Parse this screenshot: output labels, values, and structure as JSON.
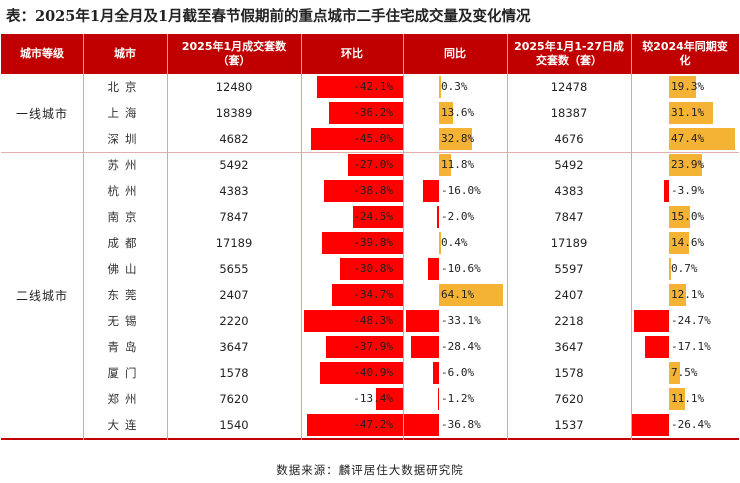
{
  "title": "表：2025年1月全月及1月截至春节假期前的重点城市二手住宅成交量及变化情况",
  "headers": {
    "tier": "城市等级",
    "city": "城市",
    "jan_volume": "2025年1月成交套数（套）",
    "mom": "环比",
    "yoy": "同比",
    "pre_volume": "2025年1月1-27日成交套数（套）",
    "pre_yoy": "较2024年同期变化"
  },
  "tiers": [
    {
      "label": "一线城市"
    },
    {
      "label": "二线城市"
    }
  ],
  "rows": [
    {
      "city": "北京",
      "jan": "12480",
      "mom": "-42.1%",
      "mom_v": -42.1,
      "yoy": "0.3%",
      "yoy_v": 0.3,
      "pre": "12478",
      "pre_yoy": "19.3%",
      "pre_yoy_v": 19.3
    },
    {
      "city": "上海",
      "jan": "18389",
      "mom": "-36.2%",
      "mom_v": -36.2,
      "yoy": "13.6%",
      "yoy_v": 13.6,
      "pre": "18387",
      "pre_yoy": "31.1%",
      "pre_yoy_v": 31.1
    },
    {
      "city": "深圳",
      "jan": "4682",
      "mom": "-45.0%",
      "mom_v": -45.0,
      "yoy": "32.8%",
      "yoy_v": 32.8,
      "pre": "4676",
      "pre_yoy": "47.4%",
      "pre_yoy_v": 47.4
    },
    {
      "city": "苏州",
      "jan": "5492",
      "mom": "-27.0%",
      "mom_v": -27.0,
      "yoy": "11.8%",
      "yoy_v": 11.8,
      "pre": "5492",
      "pre_yoy": "23.9%",
      "pre_yoy_v": 23.9
    },
    {
      "city": "杭州",
      "jan": "4383",
      "mom": "-38.8%",
      "mom_v": -38.8,
      "yoy": "-16.0%",
      "yoy_v": -16.0,
      "pre": "4383",
      "pre_yoy": "-3.9%",
      "pre_yoy_v": -3.9
    },
    {
      "city": "南京",
      "jan": "7847",
      "mom": "-24.5%",
      "mom_v": -24.5,
      "yoy": "-2.0%",
      "yoy_v": -2.0,
      "pre": "7847",
      "pre_yoy": "15.0%",
      "pre_yoy_v": 15.0
    },
    {
      "city": "成都",
      "jan": "17189",
      "mom": "-39.8%",
      "mom_v": -39.8,
      "yoy": "0.4%",
      "yoy_v": 0.4,
      "pre": "17189",
      "pre_yoy": "14.6%",
      "pre_yoy_v": 14.6
    },
    {
      "city": "佛山",
      "jan": "5655",
      "mom": "-30.8%",
      "mom_v": -30.8,
      "yoy": "-10.6%",
      "yoy_v": -10.6,
      "pre": "5597",
      "pre_yoy": "0.7%",
      "pre_yoy_v": 0.7
    },
    {
      "city": "东莞",
      "jan": "2407",
      "mom": "-34.7%",
      "mom_v": -34.7,
      "yoy": "64.1%",
      "yoy_v": 64.1,
      "pre": "2407",
      "pre_yoy": "12.1%",
      "pre_yoy_v": 12.1
    },
    {
      "city": "无锡",
      "jan": "2220",
      "mom": "-48.3%",
      "mom_v": -48.3,
      "yoy": "-33.1%",
      "yoy_v": -33.1,
      "pre": "2218",
      "pre_yoy": "-24.7%",
      "pre_yoy_v": -24.7
    },
    {
      "city": "青岛",
      "jan": "3647",
      "mom": "-37.9%",
      "mom_v": -37.9,
      "yoy": "-28.4%",
      "yoy_v": -28.4,
      "pre": "3647",
      "pre_yoy": "-17.1%",
      "pre_yoy_v": -17.1
    },
    {
      "city": "厦门",
      "jan": "1578",
      "mom": "-40.9%",
      "mom_v": -40.9,
      "yoy": "-6.0%",
      "yoy_v": -6.0,
      "pre": "1578",
      "pre_yoy": "7.5%",
      "pre_yoy_v": 7.5
    },
    {
      "city": "郑州",
      "jan": "7620",
      "mom": "-13.4%",
      "mom_v": -13.4,
      "yoy": "-1.2%",
      "yoy_v": -1.2,
      "pre": "7620",
      "pre_yoy": "11.1%",
      "pre_yoy_v": 11.1
    },
    {
      "city": "大连",
      "jan": "1540",
      "mom": "-47.2%",
      "mom_v": -47.2,
      "yoy": "-36.8%",
      "yoy_v": -36.8,
      "pre": "1537",
      "pre_yoy": "-26.4%",
      "pre_yoy_v": -26.4
    }
  ],
  "colors": {
    "header": "#c00000",
    "negative": "#ff0000",
    "positive": "#f5b335"
  },
  "footer": "数据来源：麟评居住大数据研究院"
}
